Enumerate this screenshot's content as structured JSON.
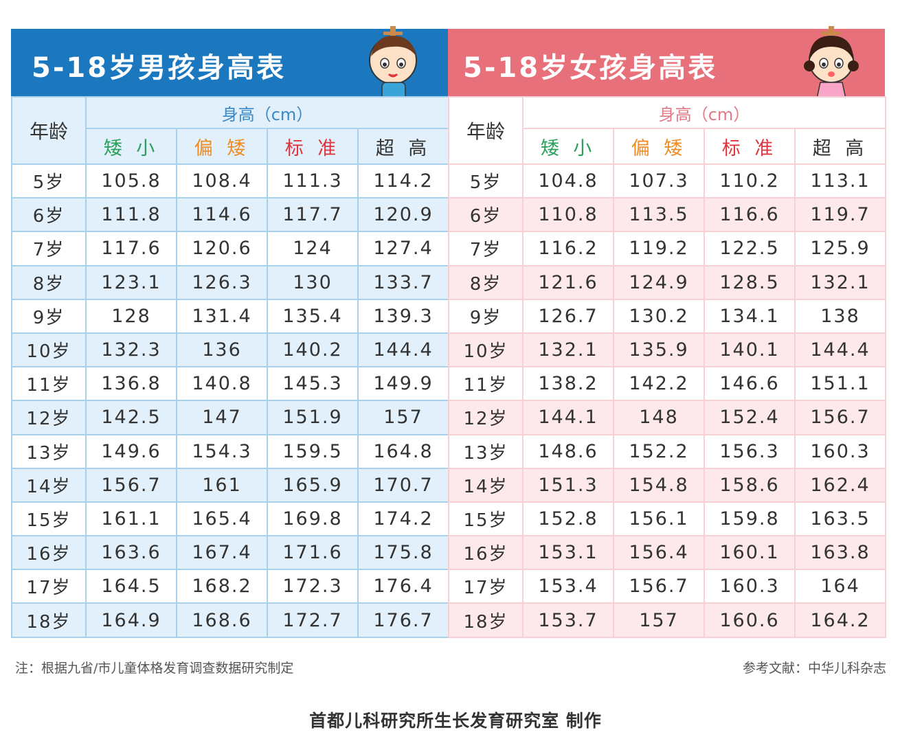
{
  "boys": {
    "title": "5-18岁男孩身高表",
    "age_header": "年龄",
    "height_header": "身高（cm）",
    "categories": [
      "矮 小",
      "偏 矮",
      "标 准",
      "超 高"
    ],
    "rows": [
      {
        "age": "5岁",
        "values": [
          "105.8",
          "108.4",
          "111.3",
          "114.2"
        ]
      },
      {
        "age": "6岁",
        "values": [
          "111.8",
          "114.6",
          "117.7",
          "120.9"
        ]
      },
      {
        "age": "7岁",
        "values": [
          "117.6",
          "120.6",
          "124",
          "127.4"
        ]
      },
      {
        "age": "8岁",
        "values": [
          "123.1",
          "126.3",
          "130",
          "133.7"
        ]
      },
      {
        "age": "9岁",
        "values": [
          "128",
          "131.4",
          "135.4",
          "139.3"
        ]
      },
      {
        "age": "10岁",
        "values": [
          "132.3",
          "136",
          "140.2",
          "144.4"
        ]
      },
      {
        "age": "11岁",
        "values": [
          "136.8",
          "140.8",
          "145.3",
          "149.9"
        ]
      },
      {
        "age": "12岁",
        "values": [
          "142.5",
          "147",
          "151.9",
          "157"
        ]
      },
      {
        "age": "13岁",
        "values": [
          "149.6",
          "154.3",
          "159.5",
          "164.8"
        ]
      },
      {
        "age": "14岁",
        "values": [
          "156.7",
          "161",
          "165.9",
          "170.7"
        ]
      },
      {
        "age": "15岁",
        "values": [
          "161.1",
          "165.4",
          "169.8",
          "174.2"
        ]
      },
      {
        "age": "16岁",
        "values": [
          "163.6",
          "167.4",
          "171.6",
          "175.8"
        ]
      },
      {
        "age": "17岁",
        "values": [
          "164.5",
          "168.2",
          "172.3",
          "176.4"
        ]
      },
      {
        "age": "18岁",
        "values": [
          "164.9",
          "168.6",
          "172.7",
          "176.7"
        ]
      }
    ]
  },
  "girls": {
    "title": "5-18岁女孩身高表",
    "age_header": "年龄",
    "height_header": "身高（cm）",
    "categories": [
      "矮 小",
      "偏 矮",
      "标 准",
      "超 高"
    ],
    "rows": [
      {
        "age": "5岁",
        "values": [
          "104.8",
          "107.3",
          "110.2",
          "113.1"
        ]
      },
      {
        "age": "6岁",
        "values": [
          "110.8",
          "113.5",
          "116.6",
          "119.7"
        ]
      },
      {
        "age": "7岁",
        "values": [
          "116.2",
          "119.2",
          "122.5",
          "125.9"
        ]
      },
      {
        "age": "8岁",
        "values": [
          "121.6",
          "124.9",
          "128.5",
          "132.1"
        ]
      },
      {
        "age": "9岁",
        "values": [
          "126.7",
          "130.2",
          "134.1",
          "138"
        ]
      },
      {
        "age": "10岁",
        "values": [
          "132.1",
          "135.9",
          "140.1",
          "144.4"
        ]
      },
      {
        "age": "11岁",
        "values": [
          "138.2",
          "142.2",
          "146.6",
          "151.1"
        ]
      },
      {
        "age": "12岁",
        "values": [
          "144.1",
          "148",
          "152.4",
          "156.7"
        ]
      },
      {
        "age": "13岁",
        "values": [
          "148.6",
          "152.2",
          "156.3",
          "160.3"
        ]
      },
      {
        "age": "14岁",
        "values": [
          "151.3",
          "154.8",
          "158.6",
          "162.4"
        ]
      },
      {
        "age": "15岁",
        "values": [
          "152.8",
          "156.1",
          "159.8",
          "163.5"
        ]
      },
      {
        "age": "16岁",
        "values": [
          "153.1",
          "156.4",
          "160.1",
          "163.8"
        ]
      },
      {
        "age": "17岁",
        "values": [
          "153.4",
          "156.7",
          "160.3",
          "164"
        ]
      },
      {
        "age": "18岁",
        "values": [
          "153.7",
          "157",
          "160.6",
          "164.2"
        ]
      }
    ]
  },
  "note_left": "注：根据九省/市儿童体格发育调查数据研究制定",
  "note_right": "参考文献：中华儿科杂志",
  "footer": "首都儿科研究所生长发育研究室 制作",
  "icons": {
    "boys_mascot": "boy-on-scale-icon",
    "girls_mascot": "girl-on-scale-icon"
  },
  "colors": {
    "boys_primary": "#1b77be",
    "girls_primary": "#e8707a",
    "short": "#2aa05a",
    "below": "#f08c24",
    "standard": "#e0343c",
    "tall": "#333333"
  }
}
